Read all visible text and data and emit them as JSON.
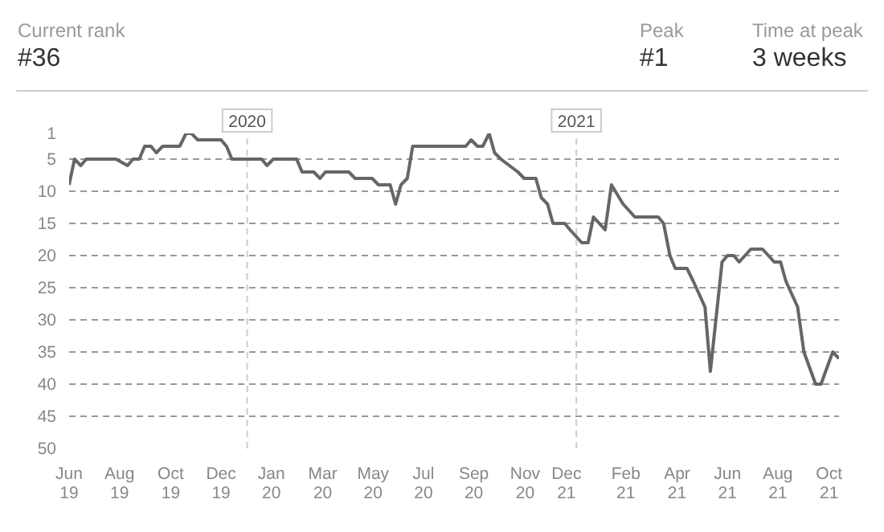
{
  "chart_data": {
    "type": "line",
    "annotations": [
      "Current rank",
      "#36",
      "Peak",
      "#1",
      "Time at peak",
      "3 weeks"
    ],
    "x": [
      "2019-06-17",
      "2019-06-23",
      "2019-06-30",
      "2019-07-06",
      "2019-08-08",
      "2019-08-21",
      "2019-08-27",
      "2019-09-03",
      "2019-09-09",
      "2019-09-16",
      "2019-09-22",
      "2019-09-29",
      "2019-10-18",
      "2019-10-25",
      "2019-10-31",
      "2019-11-07",
      "2019-12-03",
      "2019-12-09",
      "2019-12-15",
      "2020-01-17",
      "2020-01-23",
      "2020-01-30",
      "2020-02-25",
      "2020-03-02",
      "2020-03-15",
      "2020-03-22",
      "2020-03-28",
      "2020-04-23",
      "2020-04-30",
      "2020-05-19",
      "2020-05-26",
      "2020-06-08",
      "2020-06-14",
      "2020-06-20",
      "2020-06-27",
      "2020-07-03",
      "2020-08-31",
      "2020-09-06",
      "2020-09-13",
      "2020-09-19",
      "2020-09-26",
      "2020-10-02",
      "2020-10-09",
      "2020-10-28",
      "2020-11-04",
      "2020-11-17",
      "2020-11-23",
      "2020-11-30",
      "2020-12-06",
      "2020-12-19",
      "2020-12-25",
      "2021-01-07",
      "2021-01-14",
      "2021-01-20",
      "2021-02-02",
      "2021-02-09",
      "2021-02-22",
      "2021-03-07",
      "2021-04-02",
      "2021-04-08",
      "2021-04-15",
      "2021-04-21",
      "2021-05-04",
      "2021-05-11",
      "2021-05-24",
      "2021-05-30",
      "2021-06-12",
      "2021-06-18",
      "2021-06-25",
      "2021-07-01",
      "2021-07-14",
      "2021-07-27",
      "2021-08-09",
      "2021-08-16",
      "2021-08-22",
      "2021-09-04",
      "2021-09-11",
      "2021-09-24",
      "2021-09-30",
      "2021-10-13",
      "2021-10-20"
    ],
    "series": [
      {
        "color": "#666666",
        "values": [
          9,
          5,
          6,
          5,
          5,
          6,
          5,
          5,
          3,
          3,
          4,
          3,
          3,
          1,
          1,
          2,
          2,
          3,
          5,
          5,
          6,
          5,
          5,
          7,
          7,
          8,
          7,
          7,
          8,
          8,
          9,
          9,
          12,
          9,
          8,
          3,
          3,
          2,
          3,
          3,
          1,
          4,
          5,
          7,
          8,
          8,
          11,
          12,
          15,
          15,
          16,
          18,
          18,
          14,
          16,
          9,
          12,
          14,
          14,
          15,
          20,
          22,
          22,
          24,
          28,
          38,
          21,
          20,
          20,
          21,
          19,
          19,
          21,
          21,
          24,
          28,
          35,
          40,
          40,
          35,
          36
        ]
      }
    ],
    "xlim": [
      "2019-06-17",
      "2021-10-20"
    ],
    "xticks": [
      {
        "value": "2019-06-17",
        "label": "Jun\n19"
      },
      {
        "value": "2019-08-12",
        "label": "Aug\n19"
      },
      {
        "value": "2019-10-08",
        "label": "Oct\n19"
      },
      {
        "value": "2019-12-03",
        "label": "Dec\n19"
      },
      {
        "value": "2020-01-28",
        "label": "Jan\n20"
      },
      {
        "value": "2020-03-25",
        "label": "Mar\n20"
      },
      {
        "value": "2020-05-20",
        "label": "May\n20"
      },
      {
        "value": "2020-07-15",
        "label": "Jul\n20"
      },
      {
        "value": "2020-09-09",
        "label": "Sep\n20"
      },
      {
        "value": "2020-11-05",
        "label": "Nov\n20"
      },
      {
        "value": "2020-12-21",
        "label": "Dec\n21"
      },
      {
        "value": "2021-02-25",
        "label": "Feb\n21"
      },
      {
        "value": "2021-04-23",
        "label": "Apr\n21"
      },
      {
        "value": "2021-06-18",
        "label": "Jun\n21"
      },
      {
        "value": "2021-08-13",
        "label": "Aug\n21"
      },
      {
        "value": "2021-10-09",
        "label": "Oct\n21"
      }
    ],
    "ylim": [
      50,
      1
    ],
    "yticks": [
      1,
      5,
      10,
      15,
      20,
      25,
      30,
      35,
      40,
      45,
      50
    ],
    "ref_lines": [
      {
        "axis": "x",
        "value": "2020-01-01",
        "label": "2020",
        "color": "#cccccc",
        "line_style": "dashed"
      },
      {
        "axis": "x",
        "value": "2021-01-01",
        "label": "2021",
        "color": "#cccccc",
        "line_style": "dashed"
      }
    ],
    "grid": "y",
    "marker": "none",
    "line_style": "solid"
  }
}
